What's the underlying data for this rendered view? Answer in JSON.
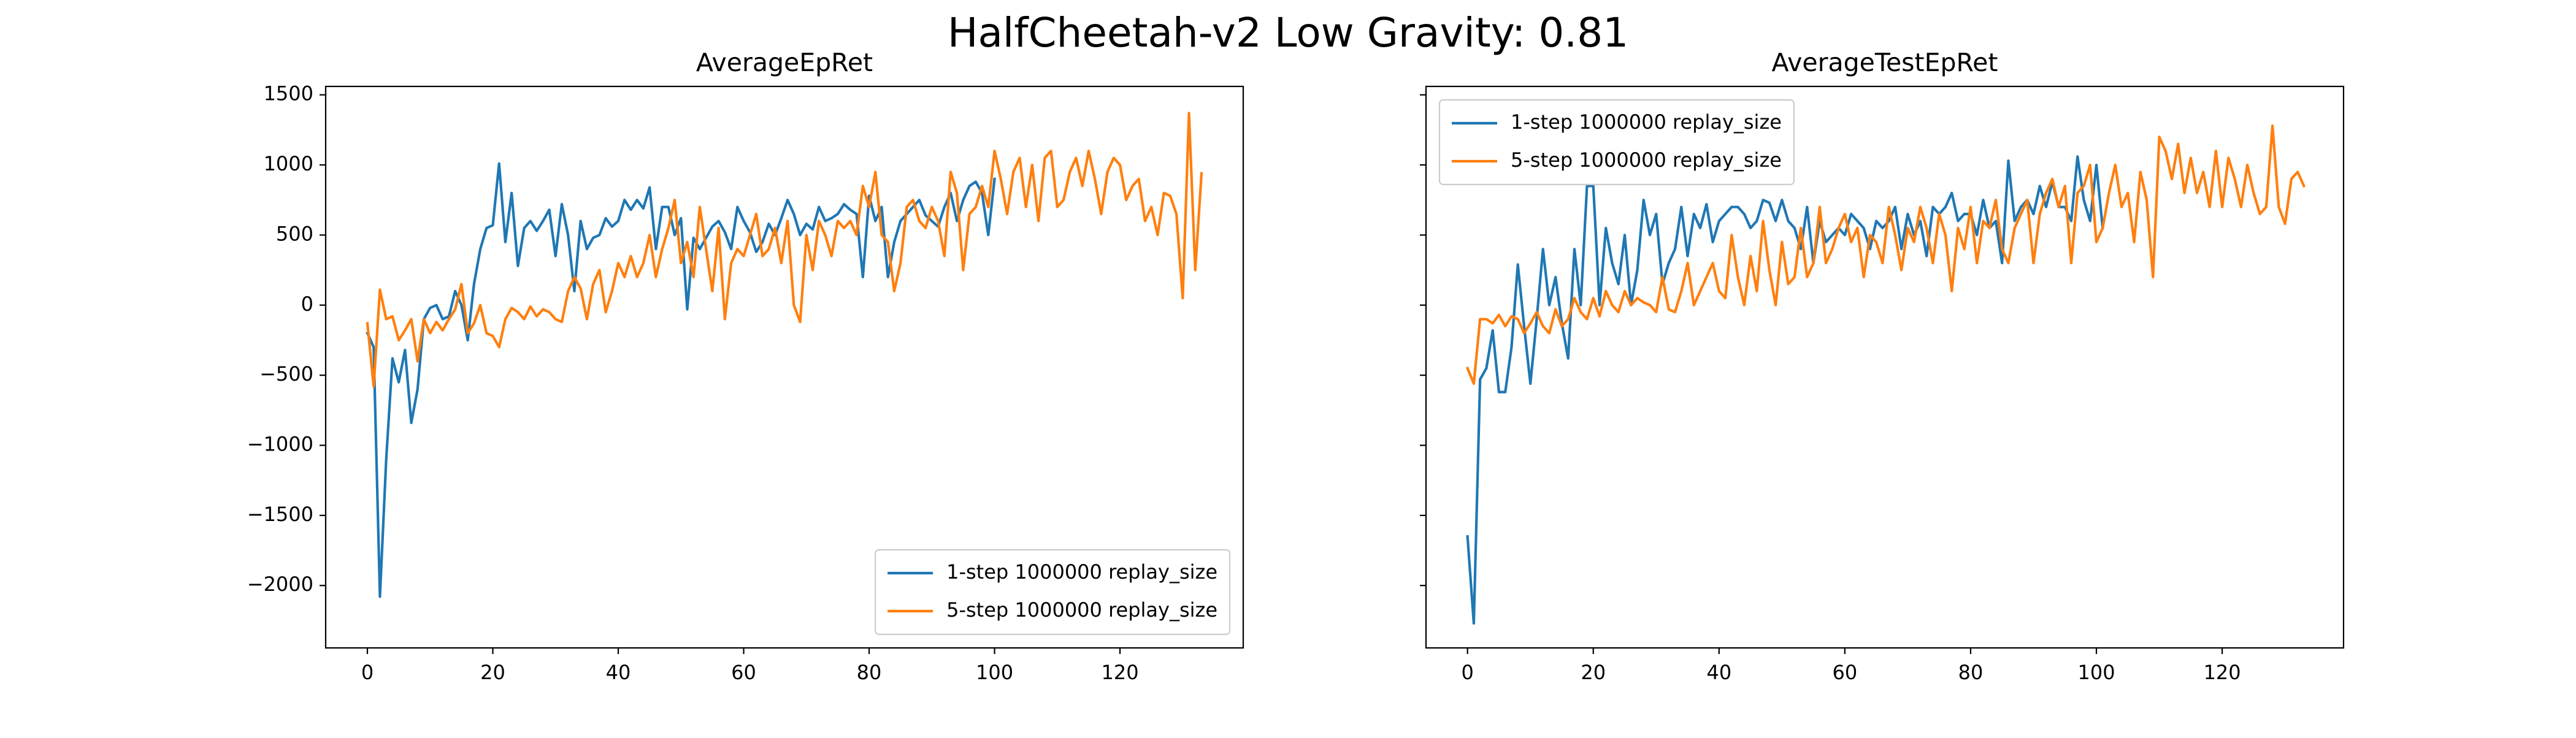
{
  "title": "HalfCheetah-v2 Low Gravity: 0.81",
  "chart_data": [
    {
      "type": "line",
      "title": "AverageEpRet",
      "x": [
        0,
        1,
        2,
        3,
        4,
        5,
        6,
        7,
        8,
        9,
        10,
        11,
        12,
        13,
        14,
        15,
        16,
        17,
        18,
        19,
        20,
        21,
        22,
        23,
        24,
        25,
        26,
        27,
        28,
        29,
        30,
        31,
        32,
        33,
        34,
        35,
        36,
        37,
        38,
        39,
        40,
        41,
        42,
        43,
        44,
        45,
        46,
        47,
        48,
        49,
        50,
        51,
        52,
        53,
        54,
        55,
        56,
        57,
        58,
        59,
        60,
        61,
        62,
        63,
        64,
        65,
        66,
        67,
        68,
        69,
        70,
        71,
        72,
        73,
        74,
        75,
        76,
        77,
        78,
        79,
        80,
        81,
        82,
        83,
        84,
        85,
        86,
        87,
        88,
        89,
        90,
        91,
        92,
        93,
        94,
        95,
        96,
        97,
        98,
        99,
        100,
        101,
        102,
        103,
        104,
        105,
        106,
        107,
        108,
        109,
        110,
        111,
        112,
        113,
        114,
        115,
        116,
        117,
        118,
        119,
        120,
        121,
        122,
        123,
        124,
        125,
        126,
        127,
        128,
        129,
        130,
        131,
        132,
        133
      ],
      "series": [
        {
          "name": "1-step 1000000 replay_size",
          "color": "#1f77b4",
          "values": [
            -200,
            -300,
            -2080,
            -1100,
            -380,
            -550,
            -320,
            -840,
            -600,
            -100,
            -20,
            0,
            -100,
            -80,
            100,
            0,
            -250,
            150,
            400,
            550,
            570,
            1010,
            450,
            800,
            280,
            550,
            600,
            530,
            600,
            680,
            350,
            720,
            500,
            100,
            600,
            400,
            480,
            500,
            620,
            560,
            600,
            750,
            680,
            750,
            690,
            840,
            400,
            700,
            700,
            500,
            620,
            -30,
            480,
            400,
            480,
            560,
            600,
            520,
            400,
            700,
            600,
            520,
            380,
            450,
            580,
            500,
            620,
            750,
            650,
            500,
            580,
            540,
            700,
            600,
            620,
            650,
            720,
            680,
            650,
            200,
            780,
            600,
            700,
            200,
            450,
            600,
            650,
            700,
            750,
            640,
            600,
            560,
            700,
            800,
            600,
            750,
            850,
            880,
            800,
            500,
            900,
            null,
            null,
            null,
            null,
            null,
            null,
            null,
            null,
            null,
            null,
            null,
            null,
            null,
            null,
            null,
            null,
            null,
            null,
            null,
            null,
            null,
            null,
            null,
            null,
            null,
            null,
            null,
            null,
            null,
            null,
            null,
            null,
            null
          ]
        },
        {
          "name": "5-step 1000000 replay_size",
          "color": "#ff7f0e",
          "values": [
            -130,
            -580,
            110,
            -100,
            -80,
            -250,
            -180,
            -100,
            -400,
            -100,
            -200,
            -120,
            -180,
            -100,
            -30,
            150,
            -200,
            -130,
            0,
            -200,
            -220,
            -300,
            -100,
            -20,
            -50,
            -100,
            -10,
            -80,
            -30,
            -50,
            -100,
            -120,
            100,
            200,
            120,
            -100,
            150,
            250,
            -50,
            100,
            300,
            200,
            350,
            200,
            300,
            500,
            200,
            400,
            550,
            750,
            300,
            450,
            200,
            700,
            400,
            100,
            550,
            -100,
            300,
            400,
            350,
            500,
            650,
            350,
            400,
            550,
            300,
            600,
            0,
            -120,
            500,
            250,
            600,
            500,
            350,
            600,
            550,
            600,
            500,
            850,
            700,
            950,
            500,
            450,
            100,
            300,
            700,
            750,
            600,
            550,
            700,
            600,
            350,
            950,
            800,
            250,
            650,
            700,
            850,
            700,
            1100,
            900,
            650,
            950,
            1050,
            700,
            1000,
            600,
            1050,
            1100,
            700,
            750,
            950,
            1050,
            850,
            1100,
            900,
            650,
            950,
            1050,
            1000,
            750,
            850,
            900,
            600,
            700,
            500,
            800,
            780,
            650,
            50,
            1370,
            250,
            940
          ]
        }
      ],
      "xlim": [
        -6.65,
        139.65
      ],
      "ylim": [
        -2445,
        1560
      ],
      "xticks": [
        0,
        20,
        40,
        60,
        80,
        100,
        120
      ],
      "yticks": [
        {
          "value": -2000,
          "label": "−2000"
        },
        {
          "value": -1500,
          "label": "−1500"
        },
        {
          "value": -1000,
          "label": "−1000"
        },
        {
          "value": -500,
          "label": "−500"
        },
        0,
        500,
        1000,
        1500
      ],
      "show_ytick_labels": true,
      "legend": "lower right"
    },
    {
      "type": "line",
      "title": "AverageTestEpRet",
      "x": [
        0,
        1,
        2,
        3,
        4,
        5,
        6,
        7,
        8,
        9,
        10,
        11,
        12,
        13,
        14,
        15,
        16,
        17,
        18,
        19,
        20,
        21,
        22,
        23,
        24,
        25,
        26,
        27,
        28,
        29,
        30,
        31,
        32,
        33,
        34,
        35,
        36,
        37,
        38,
        39,
        40,
        41,
        42,
        43,
        44,
        45,
        46,
        47,
        48,
        49,
        50,
        51,
        52,
        53,
        54,
        55,
        56,
        57,
        58,
        59,
        60,
        61,
        62,
        63,
        64,
        65,
        66,
        67,
        68,
        69,
        70,
        71,
        72,
        73,
        74,
        75,
        76,
        77,
        78,
        79,
        80,
        81,
        82,
        83,
        84,
        85,
        86,
        87,
        88,
        89,
        90,
        91,
        92,
        93,
        94,
        95,
        96,
        97,
        98,
        99,
        100,
        101,
        102,
        103,
        104,
        105,
        106,
        107,
        108,
        109,
        110,
        111,
        112,
        113,
        114,
        115,
        116,
        117,
        118,
        119,
        120,
        121,
        122,
        123,
        124,
        125,
        126,
        127,
        128,
        129,
        130,
        131,
        132,
        133
      ],
      "series": [
        {
          "name": "1-step 1000000 replay_size",
          "color": "#1f77b4",
          "values": [
            -1650,
            -2270,
            -530,
            -450,
            -180,
            -620,
            -620,
            -300,
            290,
            -150,
            -560,
            -100,
            400,
            0,
            200,
            -130,
            -380,
            400,
            0,
            850,
            850,
            0,
            550,
            300,
            150,
            500,
            0,
            250,
            750,
            500,
            650,
            150,
            300,
            400,
            700,
            350,
            650,
            550,
            720,
            450,
            600,
            650,
            700,
            700,
            650,
            550,
            600,
            750,
            730,
            600,
            750,
            600,
            550,
            400,
            700,
            300,
            600,
            450,
            500,
            550,
            500,
            650,
            600,
            550,
            400,
            600,
            550,
            600,
            700,
            400,
            650,
            500,
            600,
            350,
            700,
            650,
            700,
            800,
            600,
            650,
            650,
            500,
            750,
            550,
            600,
            300,
            1030,
            600,
            700,
            750,
            650,
            850,
            700,
            880,
            700,
            700,
            600,
            1060,
            750,
            600,
            1000,
            550,
            null,
            null,
            null,
            null,
            null,
            null,
            null,
            null,
            null,
            null,
            null,
            null,
            null,
            null,
            null,
            null,
            null,
            null,
            null,
            null,
            null,
            null,
            null,
            null,
            null,
            null,
            null,
            null,
            null,
            null,
            null,
            null
          ]
        },
        {
          "name": "5-step 1000000 replay_size",
          "color": "#ff7f0e",
          "values": [
            -450,
            -560,
            -100,
            -100,
            -130,
            -70,
            -150,
            -80,
            -100,
            -200,
            -130,
            -50,
            -150,
            -200,
            -30,
            -150,
            -100,
            50,
            -50,
            -100,
            50,
            -80,
            100,
            0,
            -50,
            100,
            0,
            50,
            20,
            0,
            -50,
            200,
            -30,
            -50,
            100,
            300,
            0,
            100,
            200,
            300,
            100,
            50,
            500,
            200,
            0,
            350,
            100,
            600,
            250,
            0,
            450,
            150,
            200,
            550,
            200,
            300,
            700,
            300,
            400,
            550,
            650,
            450,
            550,
            200,
            500,
            450,
            300,
            700,
            500,
            250,
            550,
            450,
            700,
            550,
            300,
            650,
            500,
            100,
            550,
            400,
            700,
            300,
            600,
            550,
            750,
            400,
            300,
            550,
            650,
            750,
            300,
            650,
            800,
            900,
            700,
            850,
            300,
            800,
            850,
            1000,
            450,
            550,
            800,
            1000,
            700,
            800,
            450,
            950,
            750,
            200,
            1200,
            1100,
            900,
            1150,
            800,
            1050,
            800,
            950,
            700,
            1100,
            700,
            1050,
            900,
            700,
            1000,
            800,
            650,
            700,
            1280,
            700,
            580,
            900,
            950,
            850
          ]
        }
      ],
      "xlim": [
        -6.6,
        139.3
      ],
      "ylim": [
        -2445,
        1560
      ],
      "xticks": [
        0,
        20,
        40,
        60,
        80,
        100,
        120
      ],
      "yticks": [
        -2000,
        -1500,
        -1000,
        -500,
        0,
        500,
        1000,
        1500
      ],
      "show_ytick_labels": false,
      "legend": "upper left"
    }
  ]
}
